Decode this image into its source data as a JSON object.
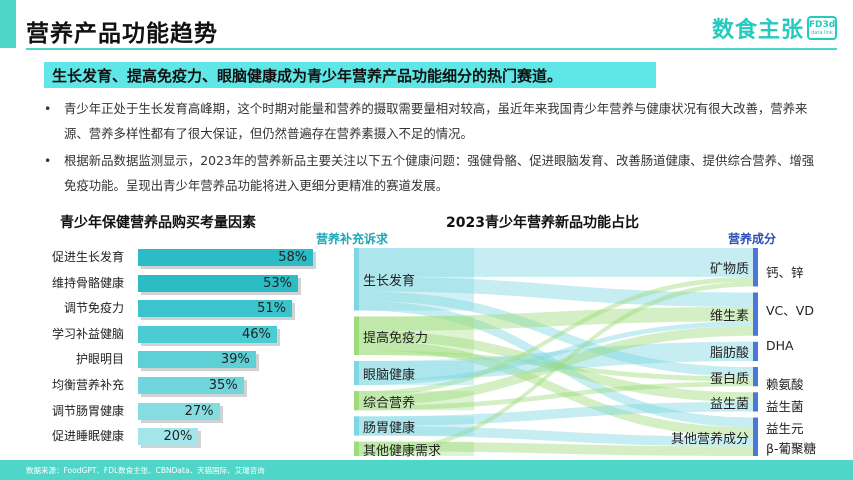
{
  "header": {
    "title": "营养产品功能趋势",
    "logo_text": "数食主张",
    "logo_badge_top": "FD3d",
    "logo_badge_bottom": "data.link"
  },
  "highlight": "生长发育、提高免疫力、眼脑健康成为青少年营养产品功能细分的热门赛道。",
  "bullets": [
    "青少年正处于生长发育高峰期，这个时期对能量和营养的摄取需要量相对较高，虽近年来我国青少年营养与健康状况有很大改善，营养来源、营养多样性都有了很大保证，但仍然普遍存在营养素摄入不足的情况。",
    "根据新品数据监测显示，2023年的营养新品主要关注以下五个健康问题：强健骨骼、促进眼脑发育、改善肠道健康、提供综合营养、增强免疫功能。呈现出青少年营养品功能将进入更细分更精准的赛道发展。"
  ],
  "bullet_symbol": "•",
  "chart_data": [
    {
      "type": "bar",
      "title": "青少年保健营养品购买考量因素",
      "categories": [
        "促进生长发育",
        "维持骨骼健康",
        "调节免疫力",
        "学习补益健脑",
        "护眼明目",
        "均衡营养补充",
        "调节肠胃健康",
        "促进睡眠健康"
      ],
      "values": [
        58,
        53,
        51,
        46,
        39,
        35,
        27,
        20
      ],
      "value_labels": [
        "58%",
        "53%",
        "51%",
        "46%",
        "39%",
        "35%",
        "27%",
        "20%"
      ],
      "xlim": [
        0,
        100
      ],
      "colors": [
        "#2bbcc6",
        "#2bbcc6",
        "#3cc4cc",
        "#4ccbd2",
        "#5dd0d6",
        "#70d6db",
        "#86dde1",
        "#a3e6e9"
      ]
    },
    {
      "type": "sankey",
      "title": "2023青少年营养新品功能占比",
      "left_header": "营养补充诉求",
      "right_header": "营养成分",
      "left_nodes": [
        {
          "name": "生长发育",
          "color": "#7fd6e3"
        },
        {
          "name": "提高免疫力",
          "color": "#9edc7a"
        },
        {
          "name": "眼脑健康",
          "color": "#7fd6e3"
        },
        {
          "name": "综合营养",
          "color": "#9edc7a"
        },
        {
          "name": "肠胃健康",
          "color": "#7fd6e3"
        },
        {
          "name": "其他健康需求",
          "color": "#9edc7a"
        }
      ],
      "right_nodes": [
        {
          "name": "矿物质",
          "detail": "钙、锌",
          "color": "#4b78d6"
        },
        {
          "name": "维生素",
          "detail": "VC、VD",
          "color": "#4b78d6"
        },
        {
          "name": "脂肪酸",
          "detail": "DHA",
          "color": "#4b78d6"
        },
        {
          "name": "蛋白质",
          "detail": "赖氨酸",
          "color": "#4b78d6"
        },
        {
          "name": "益生菌",
          "detail": "益生菌",
          "color": "#4b78d6"
        },
        {
          "name": "其他营养成分",
          "detail": "益生元",
          "color": "#4b78d6"
        }
      ],
      "extra_detail": "β-葡聚糖",
      "links": [
        {
          "source": "生长发育",
          "target": "矿物质",
          "value": 6
        },
        {
          "source": "生长发育",
          "target": "维生素",
          "value": 3
        },
        {
          "source": "生长发育",
          "target": "蛋白质",
          "value": 2
        },
        {
          "source": "生长发育",
          "target": "其他营养成分",
          "value": 2
        },
        {
          "source": "提高免疫力",
          "target": "维生素",
          "value": 3
        },
        {
          "source": "提高免疫力",
          "target": "益生菌",
          "value": 2
        },
        {
          "source": "提高免疫力",
          "target": "其他营养成分",
          "value": 2
        },
        {
          "source": "提高免疫力",
          "target": "蛋白质",
          "value": 1
        },
        {
          "source": "眼脑健康",
          "target": "脂肪酸",
          "value": 4
        },
        {
          "source": "眼脑健康",
          "target": "维生素",
          "value": 1
        },
        {
          "source": "综合营养",
          "target": "矿物质",
          "value": 1
        },
        {
          "source": "综合营养",
          "target": "维生素",
          "value": 2
        },
        {
          "source": "综合营养",
          "target": "蛋白质",
          "value": 1
        },
        {
          "source": "肠胃健康",
          "target": "益生菌",
          "value": 2
        },
        {
          "source": "肠胃健康",
          "target": "其他营养成分",
          "value": 2
        },
        {
          "source": "其他健康需求",
          "target": "其他营养成分",
          "value": 2
        },
        {
          "source": "其他健康需求",
          "target": "矿物质",
          "value": 1
        }
      ]
    }
  ],
  "footer": "数据来源：FoodGPT、FDL数食主张、CBNData、天猫国际、艾瑞咨询"
}
